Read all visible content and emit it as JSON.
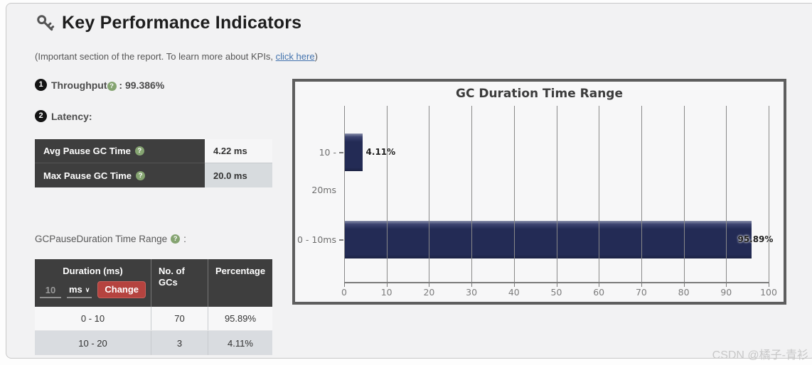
{
  "page": {
    "title": "Key Performance Indicators",
    "subtitle_prefix": "(Important section of the report. To learn more about KPIs, ",
    "subtitle_link": "click here",
    "subtitle_suffix": ")",
    "watermark": "CSDN @橘子-青衫"
  },
  "icons": {
    "header": "key-icon",
    "help_glyph": "?",
    "chevron_glyph": "∨"
  },
  "kpis": {
    "item1": {
      "number": "1",
      "label": "Throughput",
      "separator": ":",
      "value": "99.386%"
    },
    "item2": {
      "number": "2",
      "label": "Latency:"
    }
  },
  "latency_table": {
    "rows": [
      {
        "label": "Avg Pause GC Time",
        "value": "4.22 ms"
      },
      {
        "label": "Max Pause GC Time",
        "value": "20.0 ms"
      }
    ]
  },
  "gc_duration_section": {
    "label": "GCPauseDuration Time Range",
    "label_suffix": ":",
    "table": {
      "col1_header": "Duration (ms)",
      "col2_header": "No. of GCs",
      "col3_header": "Percentage",
      "input_value": "10",
      "unit_selected": "ms",
      "change_button": "Change",
      "rows": [
        {
          "duration": "0 - 10",
          "gcs": "70",
          "percentage": "95.89%"
        },
        {
          "duration": "10 - 20",
          "gcs": "3",
          "percentage": "4.11%"
        }
      ]
    }
  },
  "chart_data": {
    "type": "bar",
    "orientation": "horizontal",
    "title": "GC Duration Time Range",
    "categories": [
      "10 - 20ms",
      "0 - 10ms"
    ],
    "values": [
      4.11,
      95.89
    ],
    "value_labels": [
      "4.11%",
      "95.89%"
    ],
    "xticks": [
      0,
      10,
      20,
      30,
      40,
      50,
      60,
      70,
      80,
      90,
      100
    ],
    "xlim": [
      0,
      100
    ],
    "bar_color": "#232b55",
    "grid": true,
    "legend": false
  },
  "colors": {
    "panel_bg": "#f2f2f3",
    "table_header_bg": "#3e3e3e",
    "row_alt_bg": "#d9dce0",
    "change_button_bg": "#b5433f",
    "help_badge_bg": "#85a471",
    "link": "#4272ad",
    "bar": "#232b55"
  }
}
